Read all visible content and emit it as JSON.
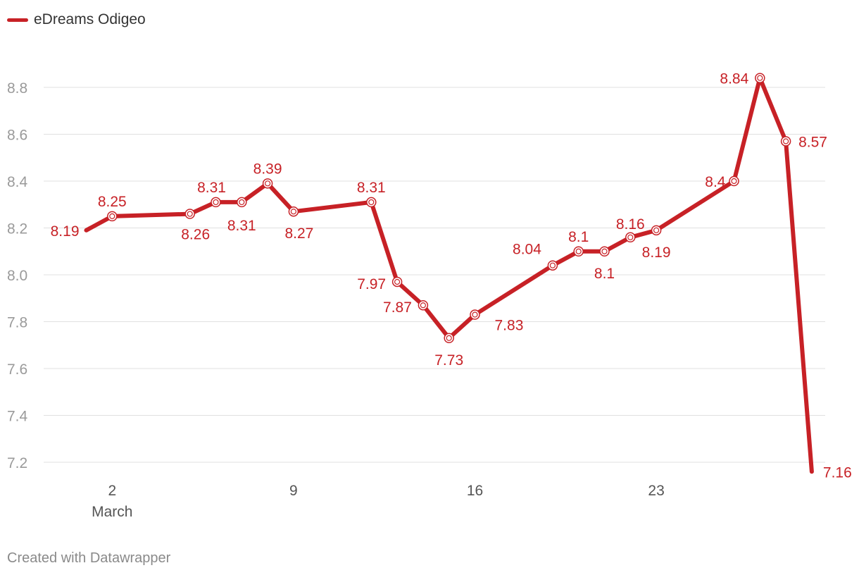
{
  "legend": {
    "label": "eDreams Odigeo",
    "color": "#c72126"
  },
  "footer": {
    "credit": "Created with Datawrapper"
  },
  "chart_data": {
    "type": "line",
    "title": "",
    "xlabel": "",
    "ylabel": "",
    "ylim": [
      7.2,
      8.8
    ],
    "yticks": [
      "8.8",
      "8.6",
      "8.4",
      "8.2",
      "8.0",
      "7.8",
      "7.6",
      "7.4",
      "7.2"
    ],
    "xticks": [
      {
        "label": "2",
        "sublabel": "March",
        "day": 2
      },
      {
        "label": "9",
        "sublabel": "",
        "day": 9
      },
      {
        "label": "16",
        "sublabel": "",
        "day": 16
      },
      {
        "label": "23",
        "sublabel": "",
        "day": 23
      }
    ],
    "grid": true,
    "series": [
      {
        "name": "eDreams Odigeo",
        "color": "#c72126",
        "points": [
          {
            "day": 1,
            "value": 8.19,
            "label": "8.19"
          },
          {
            "day": 2,
            "value": 8.25,
            "label": "8.25"
          },
          {
            "day": 5,
            "value": 8.26,
            "label": "8.26"
          },
          {
            "day": 6,
            "value": 8.31,
            "label": "8.31"
          },
          {
            "day": 7,
            "value": 8.31,
            "label": "8.31"
          },
          {
            "day": 8,
            "value": 8.39,
            "label": "8.39"
          },
          {
            "day": 9,
            "value": 8.27,
            "label": "8.27"
          },
          {
            "day": 12,
            "value": 8.31,
            "label": "8.31"
          },
          {
            "day": 13,
            "value": 7.97,
            "label": "7.97"
          },
          {
            "day": 14,
            "value": 7.87,
            "label": "7.87"
          },
          {
            "day": 15,
            "value": 7.73,
            "label": "7.73"
          },
          {
            "day": 16,
            "value": 7.83,
            "label": "7.83"
          },
          {
            "day": 19,
            "value": 8.04,
            "label": "8.04"
          },
          {
            "day": 20,
            "value": 8.1,
            "label": "8.1"
          },
          {
            "day": 21,
            "value": 8.1,
            "label": "8.1"
          },
          {
            "day": 22,
            "value": 8.16,
            "label": "8.16"
          },
          {
            "day": 23,
            "value": 8.19,
            "label": "8.19"
          },
          {
            "day": 26,
            "value": 8.4,
            "label": "8.4"
          },
          {
            "day": 27,
            "value": 8.84,
            "label": "8.84"
          },
          {
            "day": 28,
            "value": 8.57,
            "label": "8.57"
          },
          {
            "day": 29,
            "value": 7.16,
            "label": "7.16"
          }
        ]
      }
    ]
  }
}
